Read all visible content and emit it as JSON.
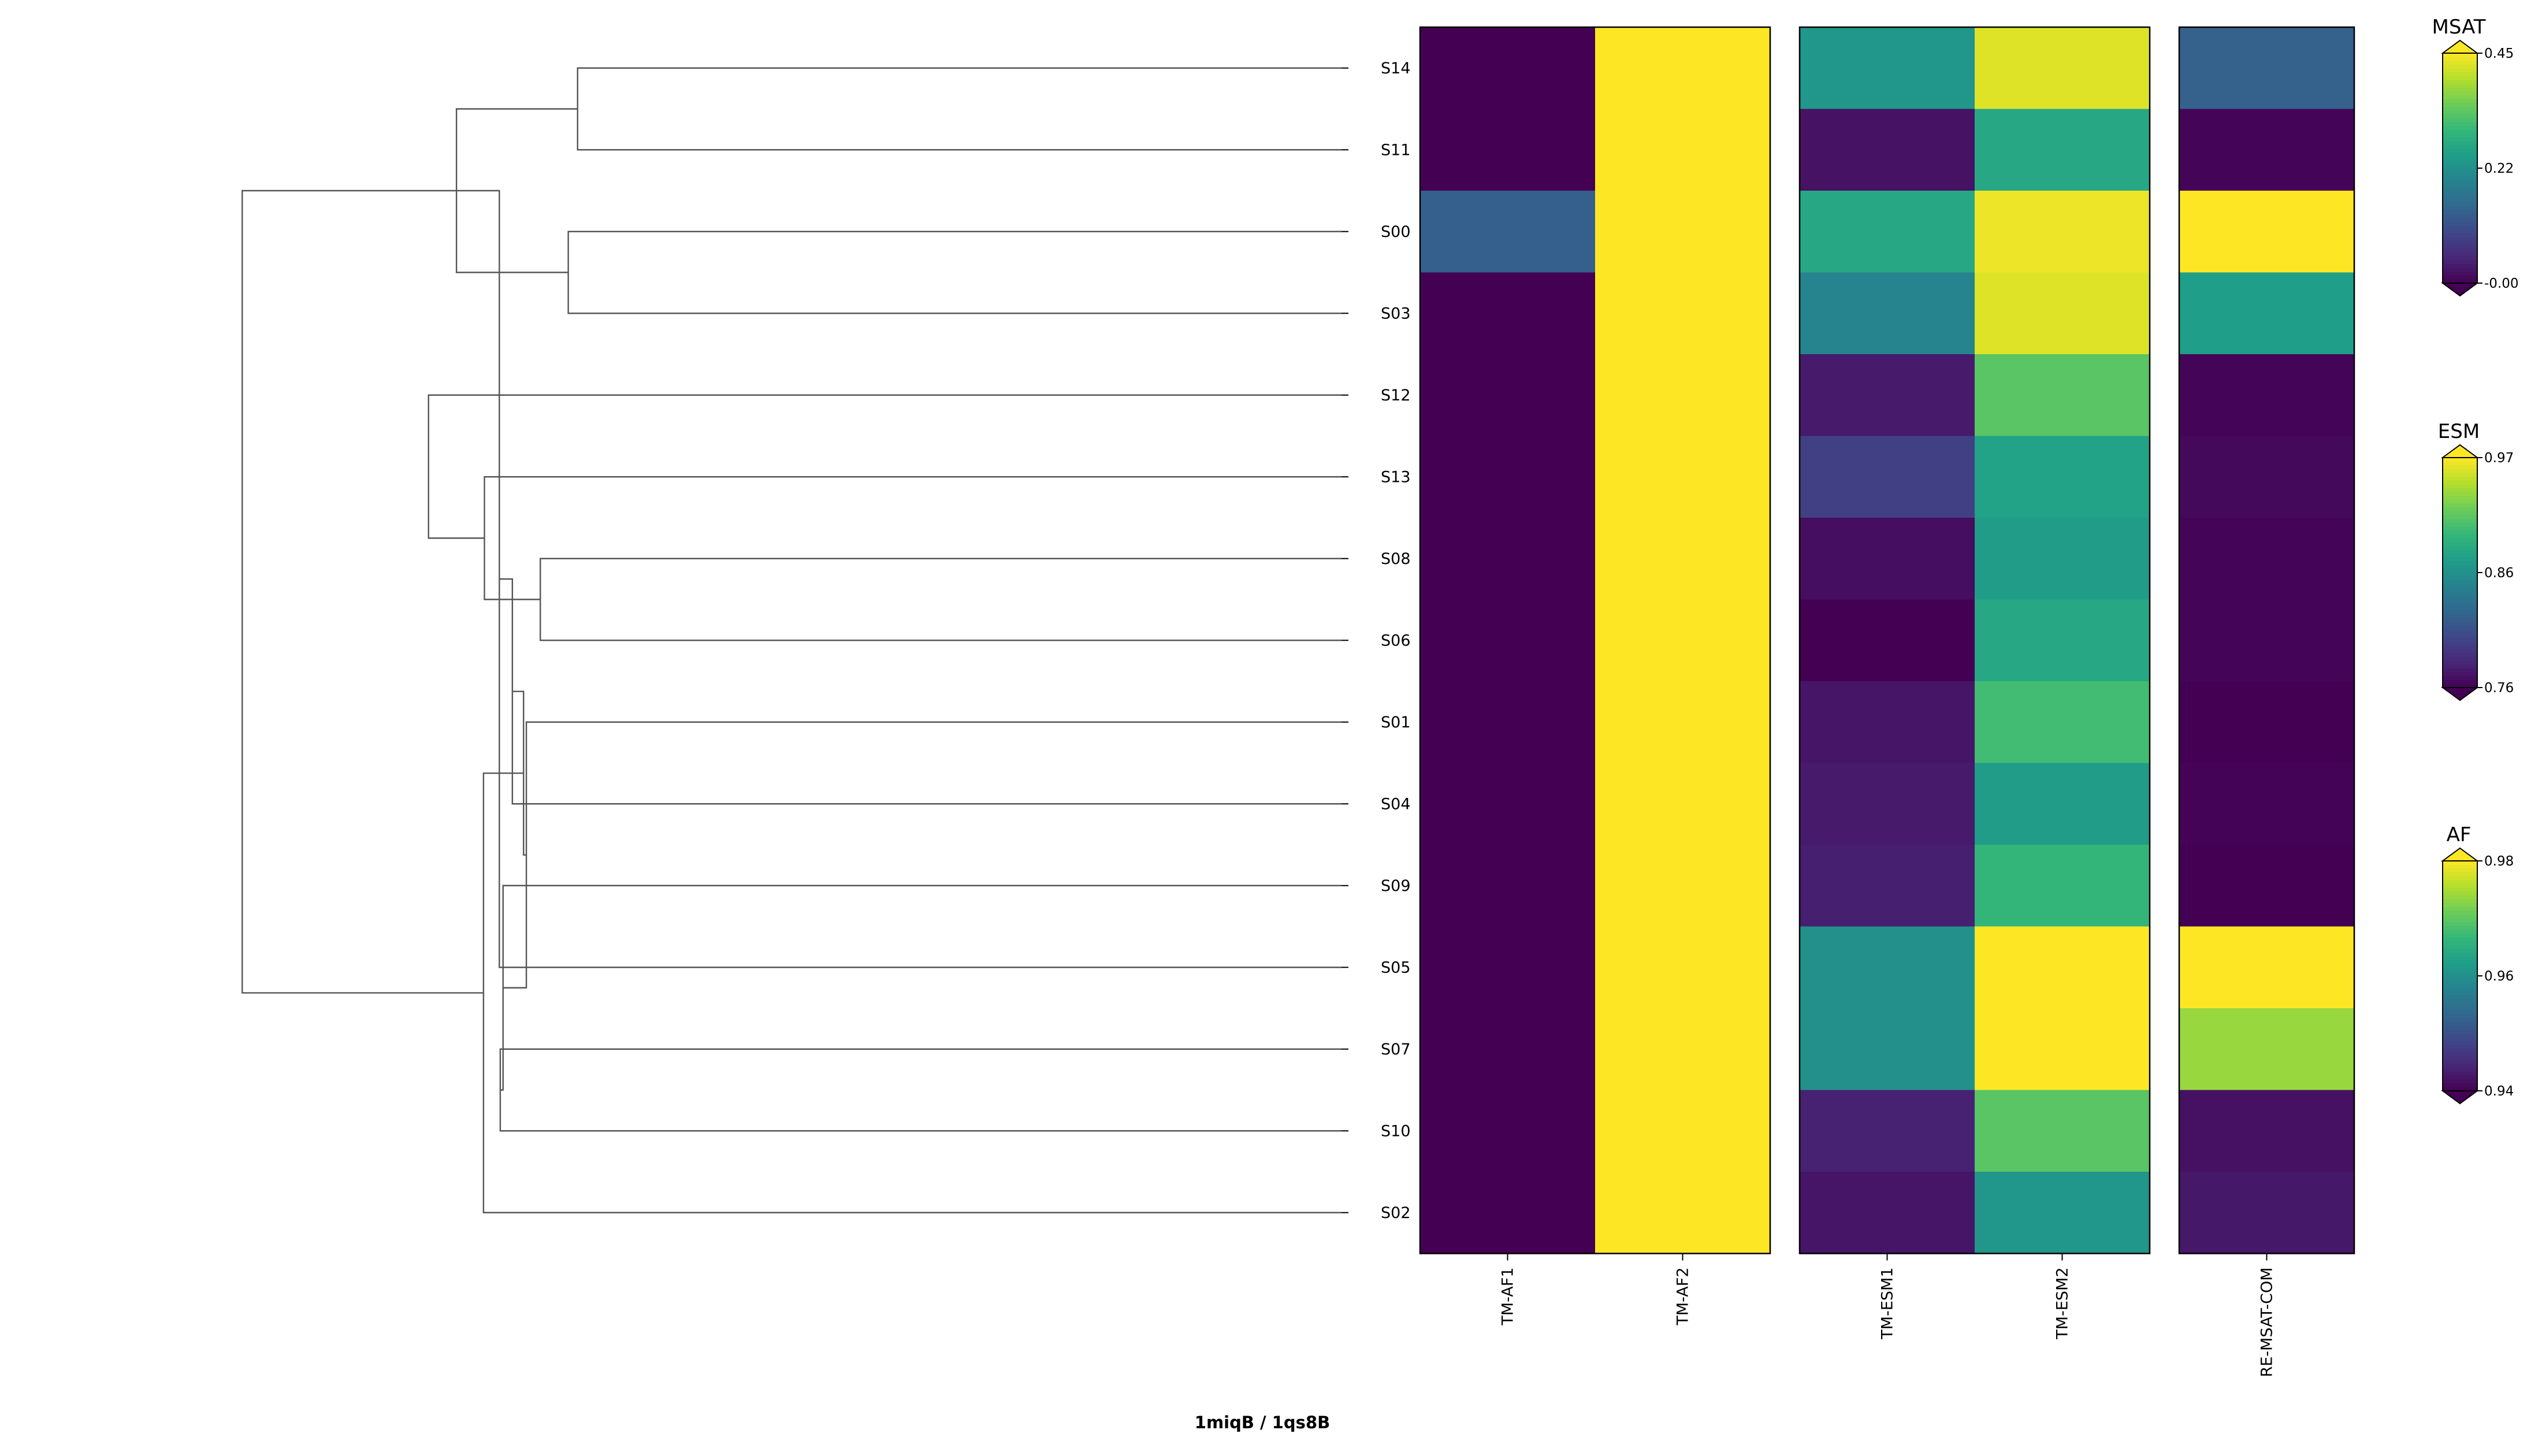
{
  "figure": {
    "title": "1miqB / 1qs8B"
  },
  "chart_data": {
    "type": "heatmap",
    "rows": [
      "S14",
      "S11",
      "S00",
      "S03",
      "S12",
      "S13",
      "S08",
      "S06",
      "S01",
      "S04",
      "S09",
      "S05",
      "S07",
      "S10",
      "S02"
    ],
    "panels": [
      {
        "colormap": "AF",
        "columns": [
          "TM-AF1",
          "TM-AF2"
        ],
        "values": [
          [
            0.94,
            0.98
          ],
          [
            0.94,
            0.98
          ],
          [
            0.952,
            0.98
          ],
          [
            0.94,
            0.98
          ],
          [
            0.94,
            0.98
          ],
          [
            0.94,
            0.98
          ],
          [
            0.94,
            0.98
          ],
          [
            0.94,
            0.98
          ],
          [
            0.94,
            0.98
          ],
          [
            0.94,
            0.98
          ],
          [
            0.94,
            0.98
          ],
          [
            0.94,
            0.98
          ],
          [
            0.94,
            0.98
          ],
          [
            0.94,
            0.98
          ],
          [
            0.94,
            0.98
          ]
        ]
      },
      {
        "colormap": "ESM",
        "columns": [
          "TM-ESM1",
          "TM-ESM2"
        ],
        "values": [
          [
            0.87,
            0.96
          ],
          [
            0.77,
            0.885
          ],
          [
            0.885,
            0.965
          ],
          [
            0.855,
            0.96
          ],
          [
            0.775,
            0.915
          ],
          [
            0.8,
            0.88
          ],
          [
            0.768,
            0.875
          ],
          [
            0.76,
            0.885
          ],
          [
            0.772,
            0.905
          ],
          [
            0.775,
            0.875
          ],
          [
            0.778,
            0.898
          ],
          [
            0.865,
            0.97
          ],
          [
            0.865,
            0.97
          ],
          [
            0.78,
            0.915
          ],
          [
            0.772,
            0.87
          ]
        ]
      },
      {
        "colormap": "MSAT",
        "columns": [
          "RE-MSAT-COM"
        ],
        "values": [
          [
            0.14
          ],
          [
            0.005
          ],
          [
            0.45
          ],
          [
            0.25
          ],
          [
            0.005
          ],
          [
            0.01
          ],
          [
            0.005
          ],
          [
            0.005
          ],
          [
            0.0
          ],
          [
            0.003
          ],
          [
            0.0
          ],
          [
            0.45
          ],
          [
            0.38
          ],
          [
            0.02
          ],
          [
            0.03
          ]
        ]
      }
    ],
    "colorbars": [
      {
        "name": "MSAT",
        "range": [
          0.0,
          0.45
        ],
        "ticks": [
          "0.45",
          "0.22",
          "-0.00"
        ]
      },
      {
        "name": "ESM",
        "range": [
          0.76,
          0.97
        ],
        "ticks": [
          "0.97",
          "0.86",
          "0.76"
        ]
      },
      {
        "name": "AF",
        "range": [
          0.94,
          0.98
        ],
        "ticks": [
          "0.98",
          "0.96",
          "0.94"
        ]
      }
    ],
    "dendrogram": {
      "orientation": "left",
      "linkage": [
        {
          "a": 0,
          "b": 1,
          "h": 0.82
        },
        {
          "a": 2,
          "b": 3,
          "h": 0.83
        },
        {
          "a": 15,
          "b": 16,
          "h": 0.95
        },
        {
          "a": 12,
          "b": 13,
          "h": 0.903
        },
        {
          "a": 17,
          "b": 11,
          "h": 0.904
        },
        {
          "a": 18,
          "b": 10,
          "h": 0.9
        },
        {
          "a": 19,
          "b": 9,
          "h": 0.89
        },
        {
          "a": 20,
          "b": 8,
          "h": 0.875
        },
        {
          "a": 6,
          "b": 7,
          "h": 0.86
        },
        {
          "a": 22,
          "b": 21,
          "h": 0.878
        },
        {
          "a": 23,
          "b": 5,
          "h": 0.92
        },
        {
          "a": 24,
          "b": 14,
          "h": 0.921
        },
        {
          "a": 4,
          "b": 25,
          "h": 0.98
        },
        {
          "a": 17,
          "b": 26,
          "h": 1.18
        }
      ],
      "note_max": 1.28
    }
  }
}
